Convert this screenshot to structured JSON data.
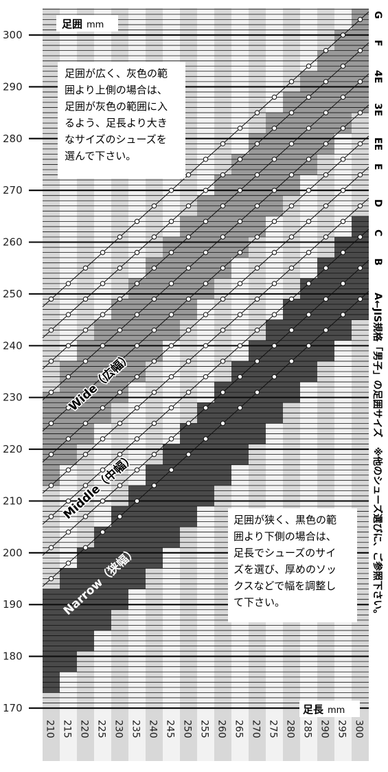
{
  "chart_data": {
    "type": "heatmap",
    "xlabel": "足長",
    "xunit": "mm",
    "ylabel": "足囲",
    "yunit": "mm",
    "x": [
      210,
      215,
      220,
      225,
      230,
      235,
      240,
      245,
      250,
      255,
      260,
      265,
      270,
      275,
      280,
      285,
      290,
      295,
      300
    ],
    "ylim": [
      170,
      305
    ],
    "yticks": [
      170,
      180,
      190,
      200,
      210,
      220,
      230,
      240,
      250,
      260,
      270,
      280,
      290,
      300
    ],
    "grid": true,
    "series": [
      {
        "name": "G",
        "values": [
          249,
          252,
          255,
          258,
          261,
          264,
          267,
          270,
          273,
          276,
          279,
          282,
          285,
          288,
          291,
          294,
          297,
          300,
          303
        ]
      },
      {
        "name": "F",
        "values": [
          243,
          246,
          249,
          252,
          255,
          258,
          261,
          264,
          267,
          270,
          273,
          276,
          279,
          282,
          285,
          288,
          291,
          294,
          297
        ]
      },
      {
        "name": "4E",
        "values": [
          237,
          240,
          243,
          246,
          249,
          252,
          255,
          258,
          261,
          264,
          267,
          270,
          273,
          276,
          279,
          282,
          285,
          288,
          291
        ]
      },
      {
        "name": "3E",
        "values": [
          231,
          234,
          237,
          240,
          243,
          246,
          249,
          252,
          255,
          258,
          261,
          264,
          267,
          270,
          273,
          276,
          279,
          282,
          285
        ]
      },
      {
        "name": "EE",
        "values": [
          225,
          228,
          231,
          234,
          237,
          240,
          243,
          246,
          249,
          252,
          255,
          258,
          261,
          264,
          267,
          270,
          273,
          276,
          279
        ]
      },
      {
        "name": "E",
        "values": [
          219,
          222,
          225,
          228,
          231,
          234,
          237,
          240,
          243,
          246,
          249,
          252,
          255,
          258,
          261,
          264,
          267,
          270,
          273
        ]
      },
      {
        "name": "D",
        "values": [
          213,
          216,
          219,
          222,
          225,
          228,
          231,
          234,
          237,
          240,
          243,
          246,
          249,
          252,
          255,
          258,
          261,
          264,
          267
        ]
      },
      {
        "name": "C",
        "values": [
          207,
          210,
          213,
          216,
          219,
          222,
          225,
          228,
          231,
          234,
          237,
          240,
          243,
          246,
          249,
          252,
          255,
          258,
          261
        ]
      },
      {
        "name": "B",
        "values": [
          201,
          204,
          207,
          210,
          213,
          216,
          219,
          222,
          225,
          228,
          231,
          234,
          237,
          240,
          243,
          246,
          249,
          252,
          255
        ]
      },
      {
        "name": "A",
        "values": [
          195,
          198,
          201,
          204,
          207,
          210,
          213,
          216,
          219,
          222,
          225,
          228,
          231,
          234,
          237,
          240,
          243,
          246,
          249
        ]
      }
    ],
    "zones": [
      {
        "name": "Wide",
        "label": "Wide（広幅）",
        "color": "#9a9a9a",
        "lower": [
          213,
          217,
          221,
          225,
          229,
          233,
          237,
          241,
          245,
          249,
          253,
          257,
          261,
          265,
          269,
          273,
          277,
          281,
          285
        ],
        "upper": [
          231,
          237,
          241,
          245,
          249,
          253,
          257,
          261,
          265,
          269,
          273,
          277,
          281,
          285,
          289,
          293,
          297,
          301,
          305
        ]
      },
      {
        "name": "Narrow",
        "label": "Narrow（狭幅）",
        "color": "#4a4a4a",
        "lower": [
          173,
          177,
          181,
          185,
          189,
          193,
          197,
          201,
          205,
          209,
          213,
          217,
          221,
          225,
          229,
          233,
          237,
          241,
          245
        ],
        "upper": [
          193,
          197,
          201,
          205,
          209,
          213,
          217,
          221,
          225,
          229,
          233,
          237,
          241,
          245,
          249,
          253,
          257,
          261,
          265
        ]
      }
    ],
    "middle_label": "Middle（中幅）",
    "right_caption": "←JIS規格「男子」の足囲サイズ　※他のシューズ選びに、ご参照下さい。",
    "note_wide": [
      "足囲が広く、灰色の範",
      "囲より上側の場合は、",
      "足囲が灰色の範囲に入",
      "るよう、足長より大き",
      "なサイズのシューズを",
      "選んで下さい。"
    ],
    "note_narrow": [
      "足囲が狭く、黒色の範",
      "囲より下側の場合は、",
      "足長でシューズのサイ",
      "ズを選び、厚めのソッ",
      "クスなどで幅を調整し",
      "て下さい。"
    ]
  },
  "colors": {
    "col_even": "#d8d8d8",
    "col_odd": "#f2f2f2",
    "wide": "#9a9a9a",
    "narrow": "#4a4a4a",
    "line": "#111111"
  }
}
